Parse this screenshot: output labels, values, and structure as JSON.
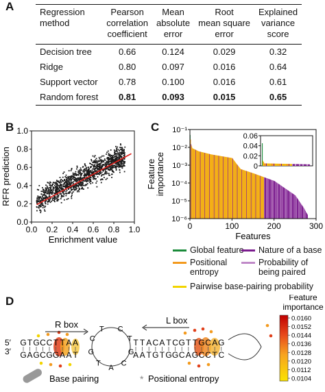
{
  "panels": {
    "a": "A",
    "b": "B",
    "c": "C",
    "d": "D"
  },
  "table": {
    "headers": [
      [
        "Regression",
        "method"
      ],
      [
        "Pearson",
        "correlation",
        "coefficient"
      ],
      [
        "Mean",
        "absolute",
        "error"
      ],
      [
        "Root",
        "mean square",
        "error"
      ],
      [
        "Explained",
        "variance",
        "score"
      ]
    ],
    "rows": [
      {
        "method": "Decision tree",
        "pearson": "0.66",
        "mae": "0.124",
        "rmse": "0.029",
        "evs": "0.32",
        "bold": false
      },
      {
        "method": "Ridge",
        "pearson": "0.80",
        "mae": "0.097",
        "rmse": "0.016",
        "evs": "0.64",
        "bold": false
      },
      {
        "method": "Support vector",
        "pearson": "0.78",
        "mae": "0.100",
        "rmse": "0.016",
        "evs": "0.61",
        "bold": false
      },
      {
        "method": "Random forest",
        "pearson": "0.81",
        "mae": "0.093",
        "rmse": "0.015",
        "evs": "0.65",
        "bold": true
      }
    ]
  },
  "chart_data": [
    {
      "type": "scatter",
      "xlabel": "Enrichment value",
      "ylabel": "RFR prediction",
      "xlim": [
        0,
        1.0
      ],
      "ylim": [
        0,
        1.0
      ],
      "xticks": [
        "0.0",
        "0.2",
        "0.4",
        "0.6",
        "0.8",
        "1.0"
      ],
      "yticks": [
        "0.0",
        "0.2",
        "0.4",
        "0.6",
        "0.8",
        "1.0"
      ],
      "fit_line": {
        "x": [
          0.05,
          0.97
        ],
        "y": [
          0.19,
          0.75
        ]
      },
      "point_cloud": {
        "x_range": [
          0.05,
          0.92
        ],
        "y_range": [
          0.1,
          0.85
        ],
        "center": [
          0.45,
          0.5
        ]
      },
      "colors": {
        "points": "#1a1a1a",
        "fit": "#e0201b"
      }
    },
    {
      "type": "bar",
      "xlabel": "Features",
      "ylabel": "Feature importance",
      "yscale": "log",
      "ylim": [
        1e-06,
        0.1
      ],
      "xlim": [
        0,
        300
      ],
      "xticks": [
        "0",
        "100",
        "200",
        "300"
      ],
      "yticks": [
        "10⁻⁶",
        "10⁻⁵",
        "10⁻⁴",
        "10⁻³",
        "10⁻²",
        "10⁻¹"
      ],
      "approx_curve": {
        "feature_index": [
          0,
          2,
          5,
          20,
          50,
          100,
          110,
          120,
          150,
          200,
          250,
          270,
          280
        ],
        "importance": [
          0.05,
          0.015,
          0.009,
          0.006,
          0.004,
          0.0025,
          0.0012,
          0.0006,
          0.00035,
          0.00013,
          2e-05,
          4e-06,
          1.5e-06
        ]
      },
      "inset": {
        "ylim": [
          0,
          0.06
        ],
        "yticks": [
          "0",
          "0.02",
          "0.04",
          "0.06"
        ],
        "peak": 0.045
      },
      "colors": {
        "global": "#1a8a3a",
        "positional": "#f39a1e",
        "nature": "#7b1c8e",
        "probability": "#c08ac8",
        "pairwise": "#f2d400"
      }
    }
  ],
  "legend": {
    "global": "Global feature",
    "positional": [
      "Positional",
      "entropy"
    ],
    "nature": "Nature of a base",
    "probability": [
      "Probability of",
      "being paired"
    ],
    "pairwise": "Pairwise base-pairing probability"
  },
  "panel_d": {
    "r_box": "R box",
    "l_box": "L box",
    "five_prime": "5′",
    "three_prime": "3′",
    "top_strand": "GTGCCTTAA",
    "bottom_strand": "GAGCGGAAT",
    "loop_letters": [
      "C",
      "T",
      "G",
      "C",
      "A",
      "T",
      "G",
      "C",
      "T"
    ],
    "right_top": "TTACATCGTTGCAG",
    "right_bottom": "AATGTGGCAGCCTC",
    "colorbar": {
      "title": [
        "Feature",
        "importance"
      ],
      "ticks": [
        "0.0160",
        "0.0152",
        "0.0144",
        "0.0136",
        "0.0128",
        "0.0120",
        "0.0112",
        "0.0104"
      ]
    },
    "legend_pairing": "Base pairing",
    "legend_entropy": "Positional entropy"
  }
}
